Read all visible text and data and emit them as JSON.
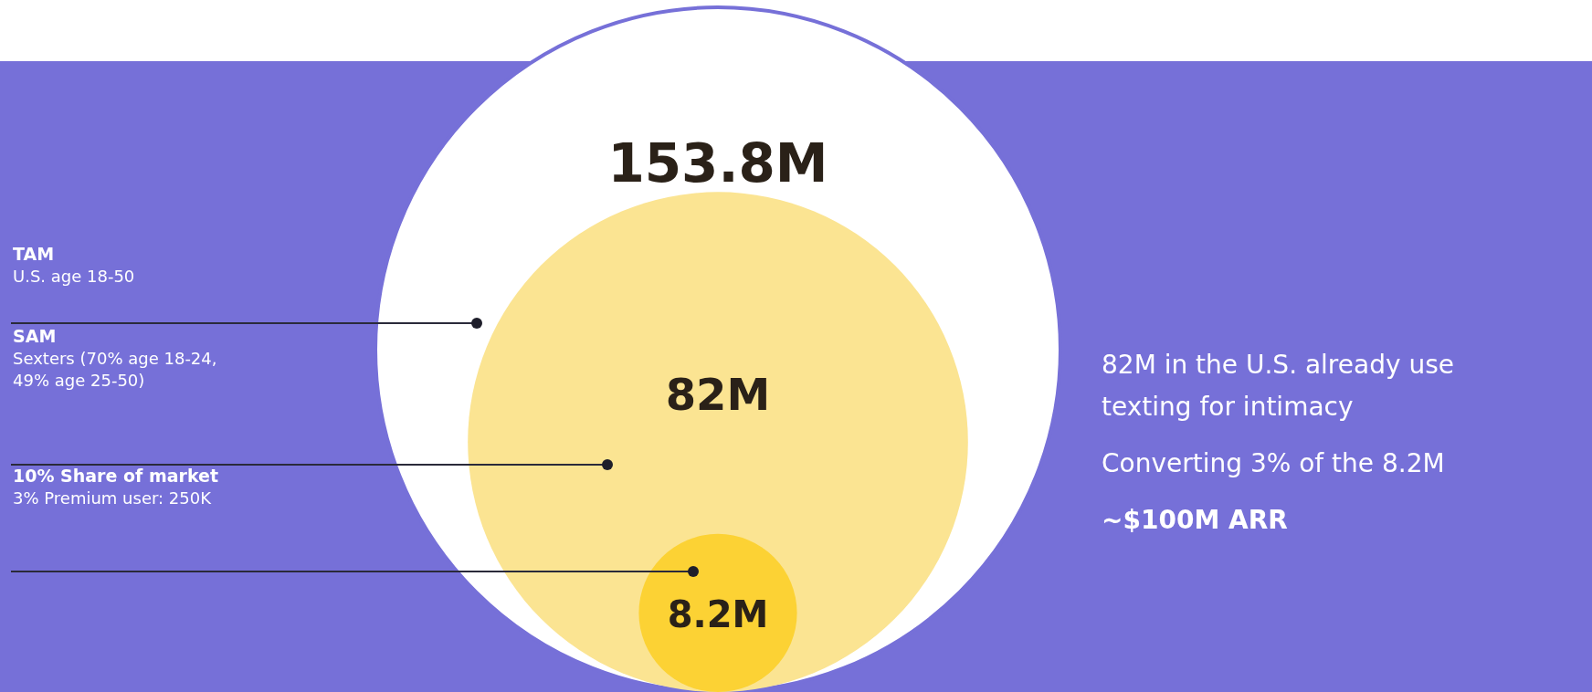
{
  "chart_data": {
    "type": "other",
    "categories": [
      "TAM",
      "SAM",
      "10% Share of market"
    ],
    "values": [
      153.8,
      82,
      8.2
    ],
    "value_labels": [
      "153.8M",
      "82M",
      "8.2M"
    ],
    "colors": [
      "#ffffff",
      "#fbe492",
      "#fcd234"
    ],
    "annotations": [
      "U.S. age 18-50",
      "Sexters (70% age 18-24, 49% age 25-50)",
      "3% Premium user: 250K",
      "82M in the U.S. already use texting for intimacy",
      "Converting 3% of the 8.2M",
      "~$100M ARR"
    ]
  }
}
